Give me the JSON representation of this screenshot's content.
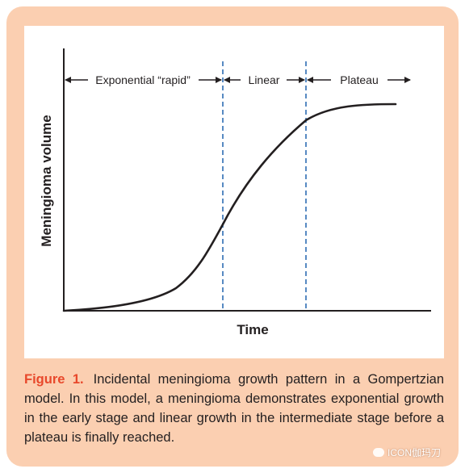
{
  "diagram": {
    "y_axis_label": "Meningioma volume",
    "x_axis_label": "Time",
    "phases": [
      {
        "label": "Exponential “rapid”"
      },
      {
        "label": "Linear"
      },
      {
        "label": "Plateau"
      }
    ],
    "curve_color": "#231f20",
    "divider_color": "#2e6db4",
    "background_color": "#fbcfb1"
  },
  "caption": {
    "label": "Figure 1.",
    "text": "Incidental meningioma growth pattern in a Gompertzian model. In this model, a meningioma demonstrates exponential growth in the early stage and linear growth in the intermediate stage before a plateau is finally reached."
  },
  "watermark": {
    "text": "ICON伽玛刀"
  }
}
